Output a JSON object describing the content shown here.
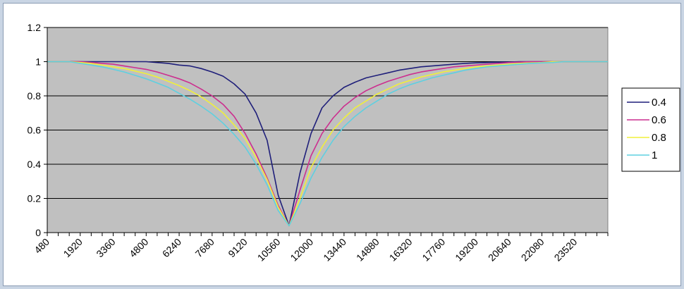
{
  "chart_data": {
    "type": "line",
    "title": "",
    "xlabel": "",
    "ylabel": "",
    "ylim": [
      0,
      1.2
    ],
    "yticks": [
      "0",
      "0.2",
      "0.4",
      "0.6",
      "0.8",
      "1",
      "1.2"
    ],
    "grid": "horizontal",
    "plot_background": "#c0c0c0",
    "legend_position": "right",
    "x_start": 480,
    "x_step": 480,
    "x_count": 52,
    "x_tick_labels": [
      "480",
      "1920",
      "3360",
      "4800",
      "6240",
      "7680",
      "9120",
      "10560",
      "12000",
      "13440",
      "14880",
      "16320",
      "17760",
      "19200",
      "20640",
      "22080",
      "23520"
    ],
    "series": [
      {
        "name": "0.4",
        "color": "#1f1f7a",
        "values": [
          1.0,
          1.0,
          1.0,
          1.0,
          1.0,
          1.0,
          1.0,
          1.0,
          1.0,
          1.0,
          0.995,
          0.99,
          0.98,
          0.975,
          0.96,
          0.94,
          0.915,
          0.87,
          0.81,
          0.7,
          0.54,
          0.22,
          0.04,
          0.35,
          0.58,
          0.73,
          0.8,
          0.85,
          0.88,
          0.905,
          0.92,
          0.935,
          0.95,
          0.96,
          0.97,
          0.975,
          0.98,
          0.985,
          0.99,
          0.993,
          0.995,
          0.997,
          0.998,
          1.0,
          1.0,
          1.0,
          1.0,
          1.0,
          1.0,
          1.0,
          1.0,
          1.0
        ]
      },
      {
        "name": "0.6",
        "color": "#cc2e8f",
        "values": [
          1.0,
          1.0,
          1.0,
          1.0,
          0.995,
          0.99,
          0.985,
          0.975,
          0.965,
          0.955,
          0.94,
          0.92,
          0.9,
          0.875,
          0.84,
          0.8,
          0.75,
          0.68,
          0.58,
          0.46,
          0.32,
          0.16,
          0.04,
          0.25,
          0.45,
          0.58,
          0.67,
          0.74,
          0.79,
          0.83,
          0.86,
          0.885,
          0.905,
          0.925,
          0.94,
          0.95,
          0.96,
          0.97,
          0.975,
          0.98,
          0.985,
          0.99,
          0.995,
          0.997,
          1.0,
          1.0,
          1.0,
          1.0,
          1.0,
          1.0,
          1.0,
          1.0
        ]
      },
      {
        "name": "0.8",
        "color": "#f0f03a",
        "values": [
          1.0,
          1.0,
          1.0,
          0.995,
          0.99,
          0.98,
          0.97,
          0.96,
          0.945,
          0.93,
          0.91,
          0.885,
          0.86,
          0.83,
          0.795,
          0.75,
          0.7,
          0.63,
          0.55,
          0.44,
          0.31,
          0.15,
          0.04,
          0.2,
          0.38,
          0.5,
          0.6,
          0.67,
          0.73,
          0.77,
          0.81,
          0.84,
          0.87,
          0.89,
          0.91,
          0.925,
          0.94,
          0.95,
          0.96,
          0.97,
          0.975,
          0.98,
          0.985,
          0.99,
          0.993,
          0.995,
          1.0,
          1.0,
          1.0,
          1.0,
          1.0,
          1.0
        ]
      },
      {
        "name": "1",
        "color": "#5ed0e0",
        "values": [
          1.0,
          1.0,
          1.0,
          0.99,
          0.98,
          0.97,
          0.955,
          0.94,
          0.92,
          0.9,
          0.875,
          0.85,
          0.815,
          0.78,
          0.74,
          0.695,
          0.64,
          0.575,
          0.5,
          0.4,
          0.28,
          0.13,
          0.04,
          0.17,
          0.32,
          0.44,
          0.54,
          0.62,
          0.68,
          0.73,
          0.77,
          0.81,
          0.84,
          0.865,
          0.885,
          0.905,
          0.92,
          0.935,
          0.95,
          0.96,
          0.97,
          0.975,
          0.98,
          0.985,
          0.99,
          0.993,
          0.995,
          1.0,
          1.0,
          1.0,
          1.0,
          1.0
        ]
      }
    ]
  }
}
